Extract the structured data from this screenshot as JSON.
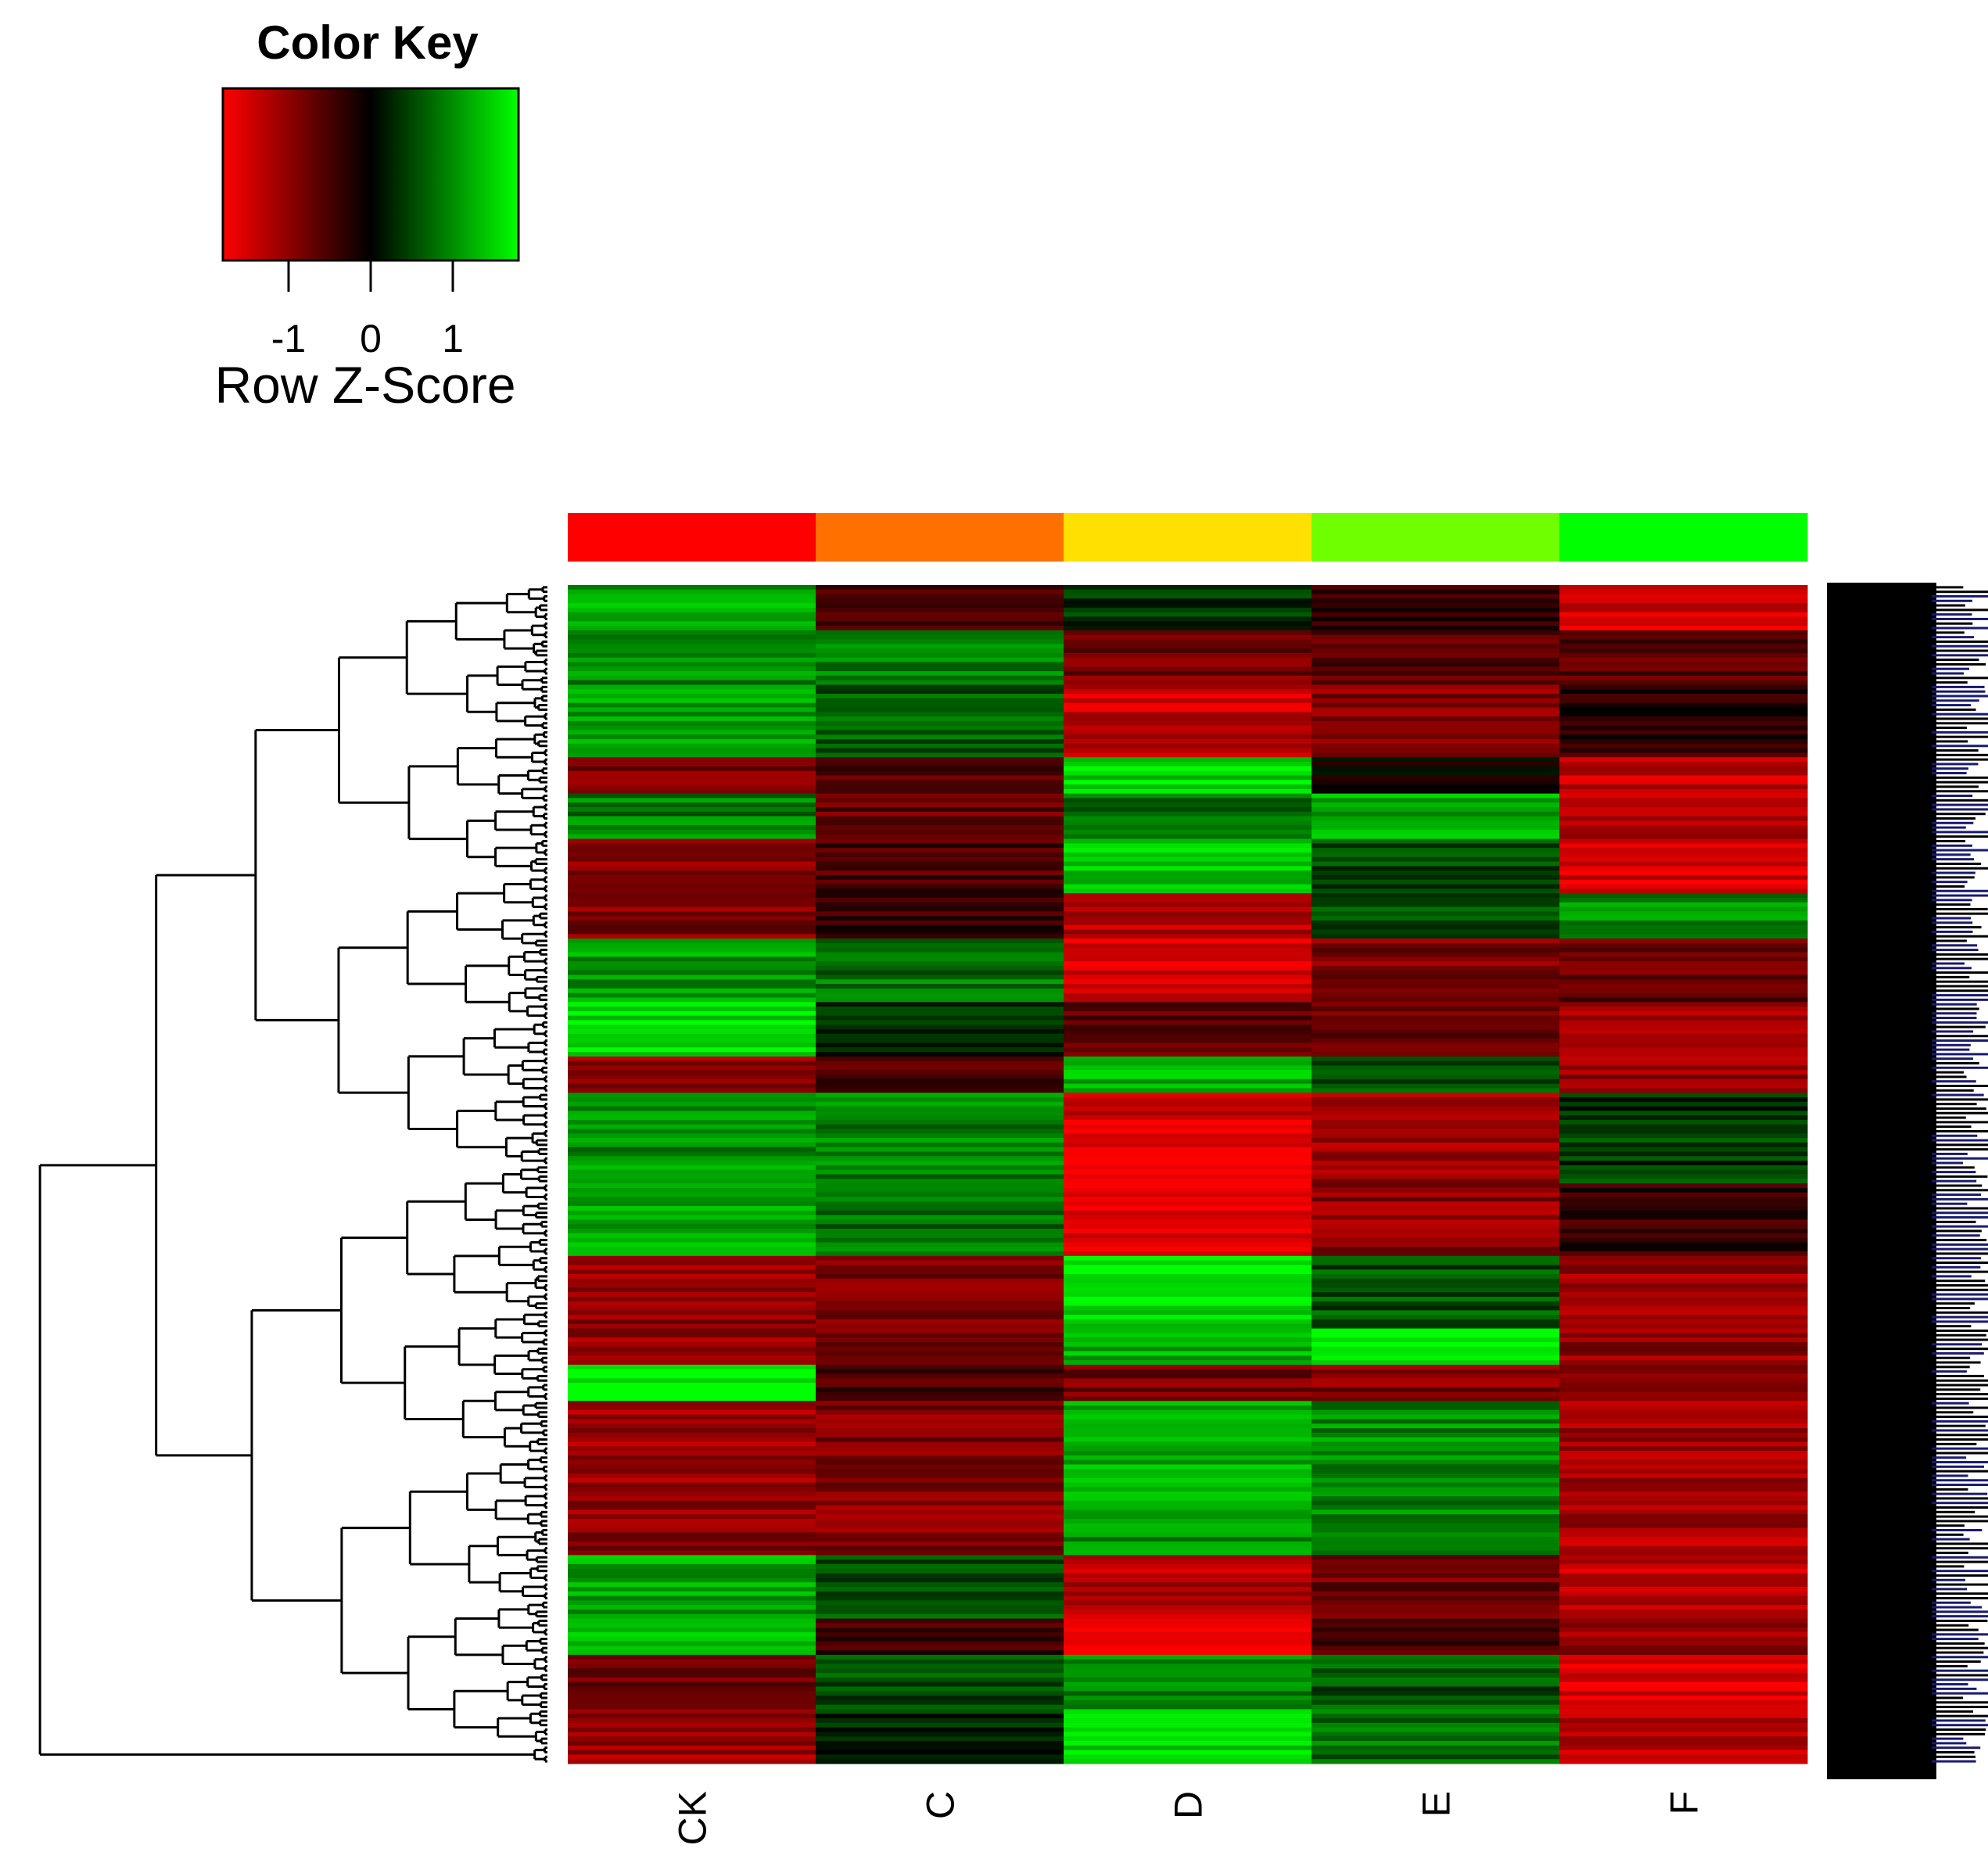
{
  "chart_data": {
    "type": "heatmap",
    "title": "",
    "color_key": {
      "title": "Color Key",
      "xlabel": "Row Z-Score",
      "ticks": [
        "-1",
        "0",
        "1"
      ],
      "tick_values": [
        -1,
        0,
        1
      ],
      "range": [
        -1.8,
        1.8
      ],
      "low_color": "#ff0000",
      "mid_color": "#000000",
      "high_color": "#00ff00"
    },
    "columns": [
      "CK",
      "C",
      "D",
      "E",
      "F"
    ],
    "column_side_colors": [
      "#ff0000",
      "#ff7000",
      "#ffe000",
      "#70ff00",
      "#00ff00"
    ],
    "row_dendrogram": true,
    "row_labels_visible": "illegible (dense)",
    "row_blocks": [
      {
        "rows": 10,
        "values": [
          1.2,
          -0.6,
          0.4,
          -0.4,
          -1.5
        ]
      },
      {
        "rows": 12,
        "values": [
          1.0,
          0.9,
          -0.8,
          -0.7,
          -0.6
        ]
      },
      {
        "rows": 16,
        "values": [
          1.1,
          0.6,
          -1.4,
          -0.9,
          -0.3
        ]
      },
      {
        "rows": 8,
        "values": [
          -0.8,
          -0.6,
          1.5,
          0.0,
          -1.4
        ]
      },
      {
        "rows": 10,
        "values": [
          0.9,
          -0.7,
          0.8,
          1.2,
          -1.3
        ]
      },
      {
        "rows": 12,
        "values": [
          -1.0,
          -0.5,
          1.4,
          0.5,
          -1.5
        ]
      },
      {
        "rows": 10,
        "values": [
          -0.9,
          -0.4,
          -1.3,
          0.6,
          1.0
        ]
      },
      {
        "rows": 14,
        "values": [
          1.1,
          0.8,
          -1.5,
          -0.9,
          -0.7
        ]
      },
      {
        "rows": 12,
        "values": [
          1.6,
          0.3,
          -0.6,
          -0.8,
          -1.2
        ]
      },
      {
        "rows": 8,
        "values": [
          -1.0,
          -0.6,
          1.3,
          0.6,
          -1.1
        ]
      },
      {
        "rows": 20,
        "values": [
          1.0,
          0.9,
          -1.5,
          -1.1,
          0.4
        ]
      },
      {
        "rows": 16,
        "values": [
          1.2,
          0.8,
          -1.6,
          -1.0,
          -0.4
        ]
      },
      {
        "rows": 16,
        "values": [
          -1.0,
          -0.8,
          1.6,
          0.6,
          -1.1
        ]
      },
      {
        "rows": 8,
        "values": [
          -1.1,
          -0.8,
          1.3,
          1.7,
          -1.0
        ]
      },
      {
        "rows": 8,
        "values": [
          1.8,
          -0.5,
          -0.8,
          -0.9,
          -1.0
        ]
      },
      {
        "rows": 22,
        "values": [
          -1.1,
          -0.9,
          1.2,
          1.0,
          -1.1
        ]
      },
      {
        "rows": 12,
        "values": [
          -1.0,
          -0.9,
          1.1,
          0.9,
          -1.2
        ]
      },
      {
        "rows": 14,
        "values": [
          1.2,
          0.6,
          -1.3,
          -0.8,
          -1.4
        ]
      },
      {
        "rows": 8,
        "values": [
          1.5,
          -0.5,
          -1.6,
          -0.6,
          -1.0
        ]
      },
      {
        "rows": 12,
        "values": [
          -0.8,
          0.5,
          1.0,
          0.6,
          -1.5
        ]
      },
      {
        "rows": 12,
        "values": [
          -1.1,
          0.3,
          1.5,
          0.8,
          -1.3
        ]
      }
    ]
  }
}
